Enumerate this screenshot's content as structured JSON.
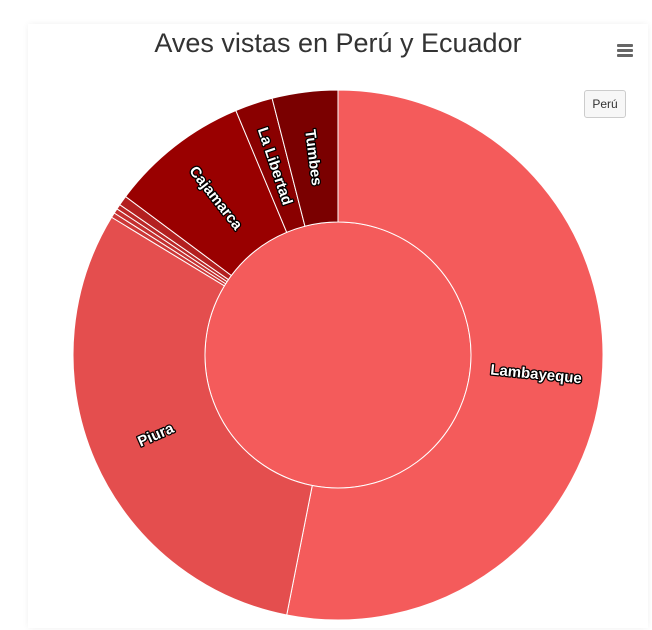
{
  "header": {
    "title": "Aves vistas en Perú y Ecuador"
  },
  "toolbar": {
    "menu_icon": "hamburger-menu-icon",
    "drill_up_label": "Perú"
  },
  "chart_data": {
    "type": "donut",
    "title": "Aves vistas en Perú y Ecuador",
    "inner_ring": [
      {
        "name": "",
        "value": 100,
        "color": "#f45b5b"
      }
    ],
    "outer_ring": [
      {
        "name": "Lambayeque",
        "value": 53.1,
        "color": "#f45b5b",
        "labeled": true
      },
      {
        "name": "Piura",
        "value": 30.6,
        "color": "#e44e4e",
        "labeled": true
      },
      {
        "name": "",
        "value": 0.3,
        "color": "#cc3838",
        "labeled": false
      },
      {
        "name": "",
        "value": 0.3,
        "color": "#c43030",
        "labeled": false
      },
      {
        "name": "",
        "value": 0.3,
        "color": "#bb2828",
        "labeled": false
      },
      {
        "name": "",
        "value": 0.6,
        "color": "#b32020",
        "labeled": false
      },
      {
        "name": "Cajamarca",
        "value": 8.5,
        "color": "#990000",
        "labeled": true
      },
      {
        "name": "La Libertad",
        "value": 2.3,
        "color": "#8a0000",
        "labeled": true
      },
      {
        "name": "Tumbes",
        "value": 4.0,
        "color": "#7a0000",
        "labeled": true
      }
    ]
  }
}
